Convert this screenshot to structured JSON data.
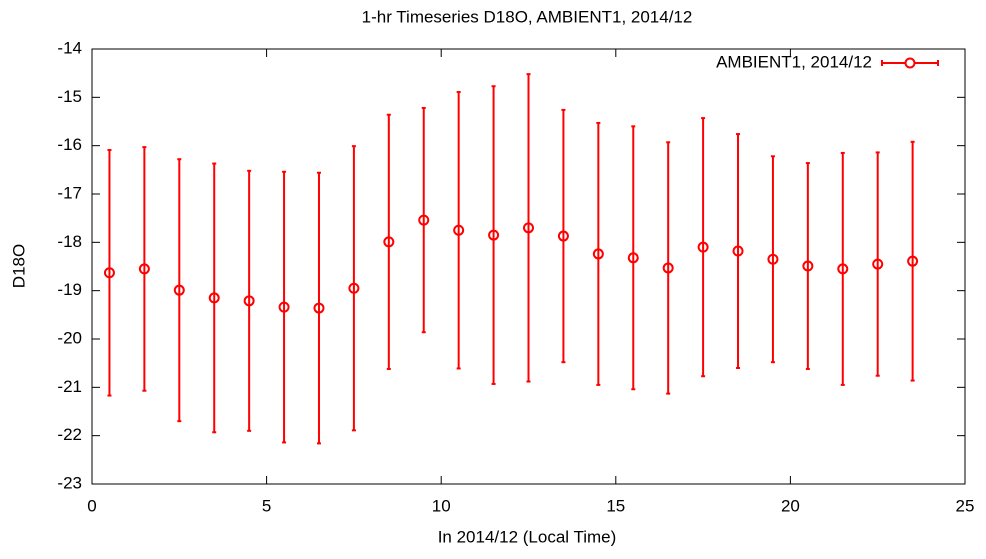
{
  "chart_data": {
    "type": "errorbar",
    "title": "1-hr Timeseries D18O, AMBIENT1, 2014/12",
    "xlabel": "In 2014/12 (Local Time)",
    "ylabel": "D18O",
    "xlim": [
      0,
      25
    ],
    "xticks": [
      0,
      5,
      10,
      15,
      20,
      25
    ],
    "ylim": [
      -23,
      -14
    ],
    "yticks": [
      -23,
      -22,
      -21,
      -20,
      -19,
      -18,
      -17,
      -16,
      -15,
      -14
    ],
    "legend": "top-right",
    "grid": false,
    "series": [
      {
        "name": "AMBIENT1, 2014/12",
        "color": "#ff0000",
        "x": [
          0.5,
          1.5,
          2.5,
          3.5,
          4.5,
          5.5,
          6.5,
          7.5,
          8.5,
          9.5,
          10.5,
          11.5,
          12.5,
          13.5,
          14.5,
          15.5,
          16.5,
          17.5,
          18.5,
          19.5,
          20.5,
          21.5,
          22.5,
          23.5
        ],
        "values": [
          -18.63,
          -18.55,
          -18.99,
          -19.15,
          -19.21,
          -19.34,
          -19.36,
          -18.95,
          -17.99,
          -17.54,
          -17.75,
          -17.85,
          -17.7,
          -17.87,
          -18.24,
          -18.32,
          -18.53,
          -18.1,
          -18.18,
          -18.35,
          -18.49,
          -18.55,
          -18.45,
          -18.39
        ],
        "errors": [
          2.54,
          2.52,
          2.71,
          2.78,
          2.69,
          2.8,
          2.8,
          2.94,
          2.63,
          2.32,
          2.86,
          3.08,
          3.18,
          2.61,
          2.71,
          2.72,
          2.6,
          2.67,
          2.42,
          2.13,
          2.13,
          2.4,
          2.31,
          2.47
        ]
      }
    ]
  }
}
